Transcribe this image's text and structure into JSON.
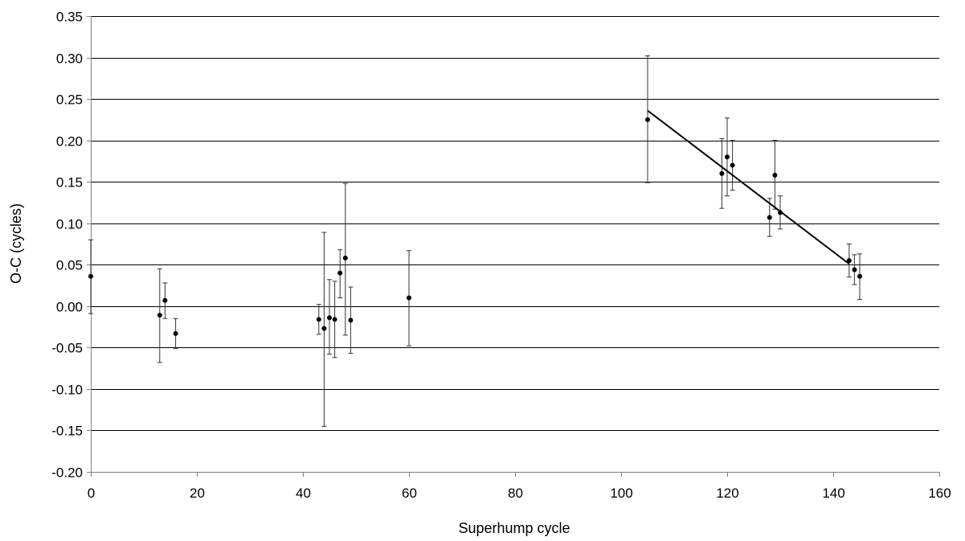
{
  "chart_data": {
    "type": "scatter",
    "title": "",
    "xlabel": "Superhump cycle",
    "ylabel": "O-C (cycles)",
    "xlim": [
      0,
      160
    ],
    "ylim": [
      -0.2,
      0.35
    ],
    "x_ticks": [
      0,
      20,
      40,
      60,
      80,
      100,
      120,
      140,
      160
    ],
    "x_tick_labels": [
      "0",
      "20",
      "40",
      "60",
      "80",
      "100",
      "120",
      "140",
      "160"
    ],
    "y_ticks": [
      -0.2,
      -0.15,
      -0.1,
      -0.05,
      0.0,
      0.05,
      0.1,
      0.15,
      0.2,
      0.25,
      0.3,
      0.35
    ],
    "y_tick_labels": [
      "-0.20",
      "-0.15",
      "-0.10",
      "-0.05",
      "0.00",
      "0.05",
      "0.10",
      "0.15",
      "0.20",
      "0.25",
      "0.30",
      "0.35"
    ],
    "grid": "horizontal",
    "legend": "none",
    "series": [
      {
        "points": [
          {
            "x": 0,
            "y": 0.036,
            "err_low": 0.045,
            "err_high": 0.044
          },
          {
            "x": 13,
            "y": -0.011,
            "err_low": 0.057,
            "err_high": 0.056
          },
          {
            "x": 14,
            "y": 0.007,
            "err_low": 0.022,
            "err_high": 0.021
          },
          {
            "x": 16,
            "y": -0.033,
            "err_low": 0.018,
            "err_high": 0.018
          },
          {
            "x": 43,
            "y": -0.016,
            "err_low": 0.018,
            "err_high": 0.018
          },
          {
            "x": 44,
            "y": -0.027,
            "err_low": 0.118,
            "err_high": 0.116
          },
          {
            "x": 45,
            "y": -0.014,
            "err_low": 0.044,
            "err_high": 0.046
          },
          {
            "x": 46,
            "y": -0.016,
            "err_low": 0.046,
            "err_high": 0.046
          },
          {
            "x": 47,
            "y": 0.04,
            "err_low": 0.03,
            "err_high": 0.028
          },
          {
            "x": 48,
            "y": 0.058,
            "err_low": 0.093,
            "err_high": 0.09
          },
          {
            "x": 49,
            "y": -0.017,
            "err_low": 0.04,
            "err_high": 0.04
          },
          {
            "x": 60,
            "y": 0.01,
            "err_low": 0.058,
            "err_high": 0.057
          },
          {
            "x": 105,
            "y": 0.225,
            "err_low": 0.076,
            "err_high": 0.077
          },
          {
            "x": 119,
            "y": 0.16,
            "err_low": 0.042,
            "err_high": 0.042
          },
          {
            "x": 120,
            "y": 0.18,
            "err_low": 0.047,
            "err_high": 0.047
          },
          {
            "x": 121,
            "y": 0.17,
            "err_low": 0.03,
            "err_high": 0.03
          },
          {
            "x": 128,
            "y": 0.107,
            "err_low": 0.023,
            "err_high": 0.023
          },
          {
            "x": 129,
            "y": 0.158,
            "err_low": 0.041,
            "err_high": 0.042
          },
          {
            "x": 130,
            "y": 0.113,
            "err_low": 0.02,
            "err_high": 0.02
          },
          {
            "x": 143,
            "y": 0.055,
            "err_low": 0.02,
            "err_high": 0.02
          },
          {
            "x": 144,
            "y": 0.044,
            "err_low": 0.018,
            "err_high": 0.018
          },
          {
            "x": 145,
            "y": 0.036,
            "err_low": 0.028,
            "err_high": 0.027
          }
        ]
      }
    ],
    "fit_line": {
      "x": [
        105,
        143
      ],
      "y": [
        0.236,
        0.051
      ]
    }
  }
}
